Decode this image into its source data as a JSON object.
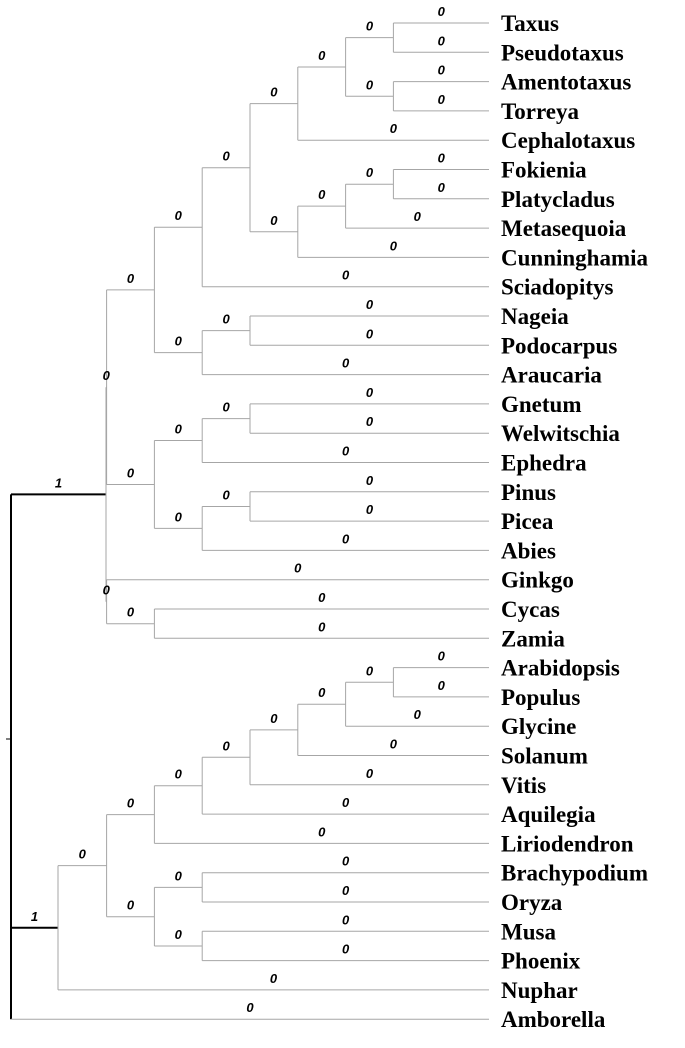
{
  "tree": {
    "label": "1",
    "children": [
      {
        "label": "1",
        "children": [
          {
            "label": "0",
            "children": [
              {
                "label": "0",
                "children": [
                  {
                    "label": "0",
                    "children": [
                      {
                        "label": "0",
                        "children": [
                          {
                            "label": "0",
                            "children": [
                              {
                                "label": "0",
                                "children": [
                                  {
                                    "label": "0",
                                    "children": [
                                      {
                                        "label": "0",
                                        "name": "Taxus"
                                      },
                                      {
                                        "label": "0",
                                        "name": "Pseudotaxus"
                                      }
                                    ]
                                  },
                                  {
                                    "label": "0",
                                    "children": [
                                      {
                                        "label": "0",
                                        "name": "Amentotaxus"
                                      },
                                      {
                                        "label": "0",
                                        "name": "Torreya"
                                      }
                                    ]
                                  }
                                ]
                              },
                              {
                                "label": "0",
                                "name": "Cephalotaxus"
                              }
                            ]
                          },
                          {
                            "label": "0",
                            "children": [
                              {
                                "label": "0",
                                "children": [
                                  {
                                    "label": "0",
                                    "children": [
                                      {
                                        "label": "0",
                                        "name": "Fokienia"
                                      },
                                      {
                                        "label": "0",
                                        "name": "Platycladus"
                                      }
                                    ]
                                  },
                                  {
                                    "label": "0",
                                    "name": "Metasequoia"
                                  }
                                ]
                              },
                              {
                                "label": "0",
                                "name": "Cunninghamia"
                              }
                            ]
                          }
                        ]
                      },
                      {
                        "label": "0",
                        "name": "Sciadopitys"
                      }
                    ]
                  },
                  {
                    "label": "0",
                    "children": [
                      {
                        "label": "0",
                        "children": [
                          {
                            "label": "0",
                            "name": "Nageia"
                          },
                          {
                            "label": "0",
                            "name": "Podocarpus"
                          }
                        ]
                      },
                      {
                        "label": "0",
                        "name": "Araucaria"
                      }
                    ]
                  }
                ]
              },
              {
                "label": "0",
                "children": [
                  {
                    "label": "0",
                    "children": [
                      {
                        "label": "0",
                        "children": [
                          {
                            "label": "0",
                            "name": "Gnetum"
                          },
                          {
                            "label": "0",
                            "name": "Welwitschia"
                          }
                        ]
                      },
                      {
                        "label": "0",
                        "name": "Ephedra"
                      }
                    ]
                  },
                  {
                    "label": "0",
                    "children": [
                      {
                        "label": "0",
                        "children": [
                          {
                            "label": "0",
                            "name": "Pinus"
                          },
                          {
                            "label": "0",
                            "name": "Picea"
                          }
                        ]
                      },
                      {
                        "label": "0",
                        "name": "Abies"
                      }
                    ]
                  }
                ]
              }
            ]
          },
          {
            "label": "0",
            "children": [
              {
                "label": "0",
                "name": "Ginkgo"
              },
              {
                "label": "0",
                "children": [
                  {
                    "label": "0",
                    "name": "Cycas"
                  },
                  {
                    "label": "0",
                    "name": "Zamia"
                  }
                ]
              }
            ]
          }
        ]
      },
      {
        "label": "1",
        "children": [
          {
            "label": "0",
            "children": [
              {
                "label": "0",
                "children": [
                  {
                    "label": "0",
                    "children": [
                      {
                        "label": "0",
                        "children": [
                          {
                            "label": "0",
                            "children": [
                              {
                                "label": "0",
                                "children": [
                                  {
                                    "label": "0",
                                    "children": [
                                      {
                                        "label": "0",
                                        "name": "Arabidopsis"
                                      },
                                      {
                                        "label": "0",
                                        "name": "Populus"
                                      }
                                    ]
                                  },
                                  {
                                    "label": "0",
                                    "name": "Glycine"
                                  }
                                ]
                              },
                              {
                                "label": "0",
                                "name": "Solanum"
                              }
                            ]
                          },
                          {
                            "label": "0",
                            "name": "Vitis"
                          }
                        ]
                      },
                      {
                        "label": "0",
                        "name": "Aquilegia"
                      }
                    ]
                  },
                  {
                    "label": "0",
                    "name": "Liriodendron"
                  }
                ]
              },
              {
                "label": "0",
                "children": [
                  {
                    "label": "0",
                    "children": [
                      {
                        "label": "0",
                        "name": "Brachypodium"
                      },
                      {
                        "label": "0",
                        "name": "Oryza"
                      }
                    ]
                  },
                  {
                    "label": "0",
                    "children": [
                      {
                        "label": "0",
                        "name": "Musa"
                      },
                      {
                        "label": "0",
                        "name": "Phoenix"
                      }
                    ]
                  }
                ]
              }
            ]
          },
          {
            "label": "0",
            "name": "Nuphar"
          }
        ]
      },
      {
        "label": "0",
        "name": "Amborella"
      }
    ]
  }
}
